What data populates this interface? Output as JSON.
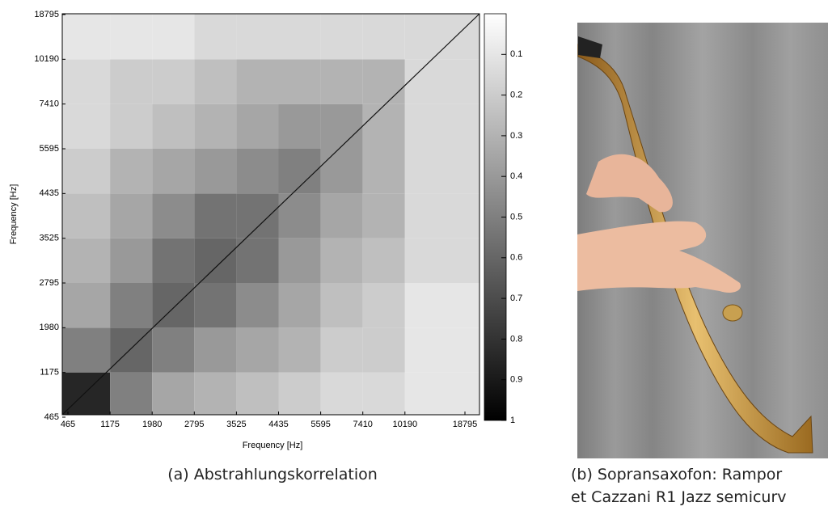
{
  "chart_data": {
    "type": "heatmap",
    "xlabel": "Frequency [Hz]",
    "ylabel": "Frequency [Hz]",
    "xticks": [
      465,
      1175,
      1980,
      2795,
      3525,
      4435,
      5595,
      7410,
      10190,
      18795
    ],
    "yticks": [
      465,
      1175,
      1980,
      2795,
      3525,
      4435,
      5595,
      7410,
      10190,
      18795
    ],
    "matrix": [
      [
        0.85,
        0.5,
        0.35,
        0.3,
        0.25,
        0.2,
        0.15,
        0.15,
        0.1
      ],
      [
        0.5,
        0.6,
        0.5,
        0.4,
        0.35,
        0.3,
        0.2,
        0.2,
        0.1
      ],
      [
        0.35,
        0.5,
        0.6,
        0.55,
        0.45,
        0.35,
        0.25,
        0.2,
        0.1
      ],
      [
        0.3,
        0.4,
        0.55,
        0.6,
        0.55,
        0.4,
        0.3,
        0.25,
        0.15
      ],
      [
        0.25,
        0.35,
        0.45,
        0.55,
        0.55,
        0.45,
        0.35,
        0.3,
        0.15
      ],
      [
        0.2,
        0.3,
        0.35,
        0.4,
        0.45,
        0.5,
        0.4,
        0.3,
        0.15
      ],
      [
        0.15,
        0.2,
        0.25,
        0.3,
        0.35,
        0.4,
        0.4,
        0.3,
        0.15
      ],
      [
        0.15,
        0.2,
        0.2,
        0.25,
        0.3,
        0.3,
        0.3,
        0.3,
        0.15
      ],
      [
        0.1,
        0.1,
        0.1,
        0.15,
        0.15,
        0.15,
        0.15,
        0.15,
        0.15
      ]
    ],
    "colorbar_lim": [
      0,
      1
    ],
    "colorbar_ticks": [
      0.1,
      0.2,
      0.3,
      0.4,
      0.5,
      0.6,
      0.7,
      0.8,
      0.9,
      1
    ]
  },
  "captions": {
    "a": "(a) Abstrahlungskorrelation",
    "b_line1": "(b) Sopransaxofon: Rampor",
    "b_line2": "et Cazzani R1 Jazz semicurv"
  }
}
